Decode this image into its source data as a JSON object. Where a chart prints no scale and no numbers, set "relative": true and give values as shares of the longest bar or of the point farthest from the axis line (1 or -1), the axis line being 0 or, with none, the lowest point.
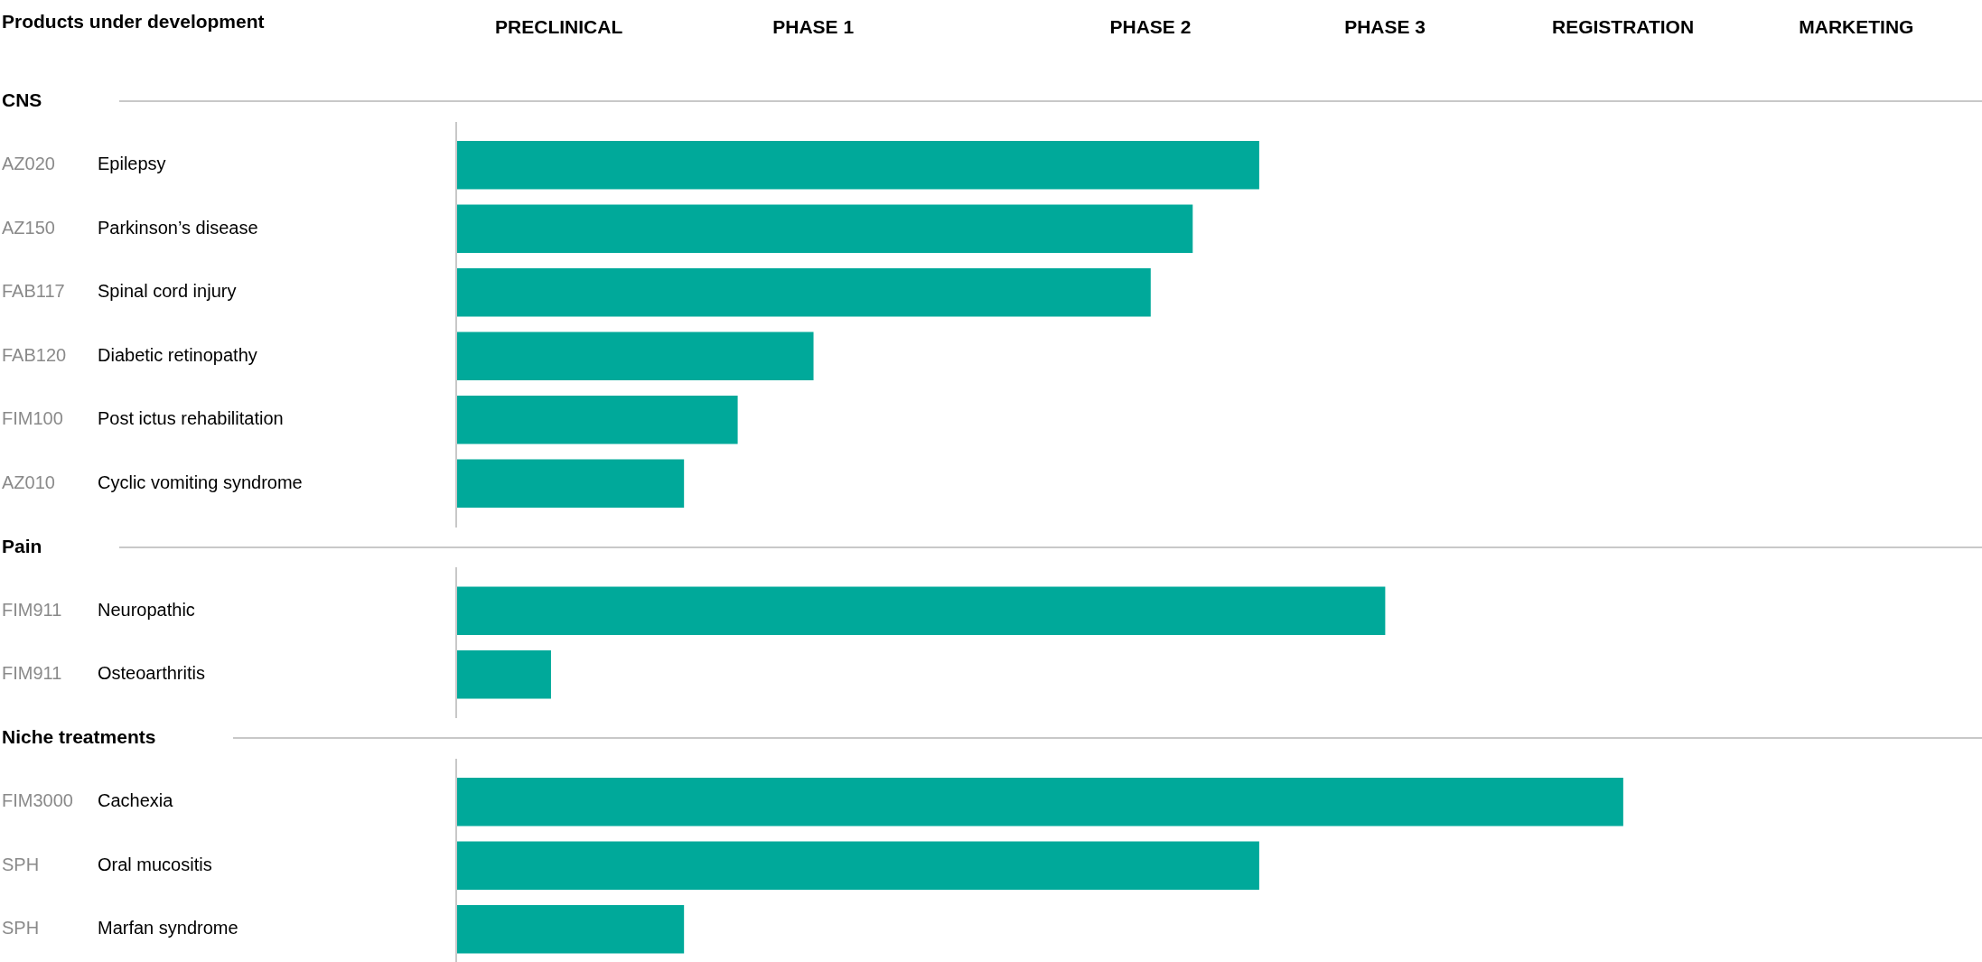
{
  "chart_data": {
    "type": "bar",
    "orientation": "horizontal",
    "relative": true,
    "title": "Products under development",
    "categories": [
      "CNS",
      "AZ020 Epilepsy",
      "AZ150 Parkinson’s disease",
      "FAB117 Spinal cord injury",
      "FAB120 Diabetic retinopathy",
      "FIM100 Post ictus rehabilitation",
      "AZ010 Cyclic vomiting syndrome",
      "Pain",
      "FIM911 Neuropathic",
      "FIM911 Osteoarthritis",
      "Niche treatments",
      "FIM3000 Cachexia",
      "SPH Oral mucositis",
      "SPH Marfan syndrome"
    ],
    "values": [
      null,
      0.688,
      0.631,
      0.595,
      0.306,
      0.241,
      0.195,
      null,
      0.796,
      0.081,
      null,
      1,
      0.688,
      0.195
    ],
    "color": "#00a99a",
    "annotations": [
      "PRECLINICAL",
      "PHASE 1",
      "PHASE 2",
      "PHASE 3",
      "REGISTRATION",
      "MARKETING"
    ]
  }
}
